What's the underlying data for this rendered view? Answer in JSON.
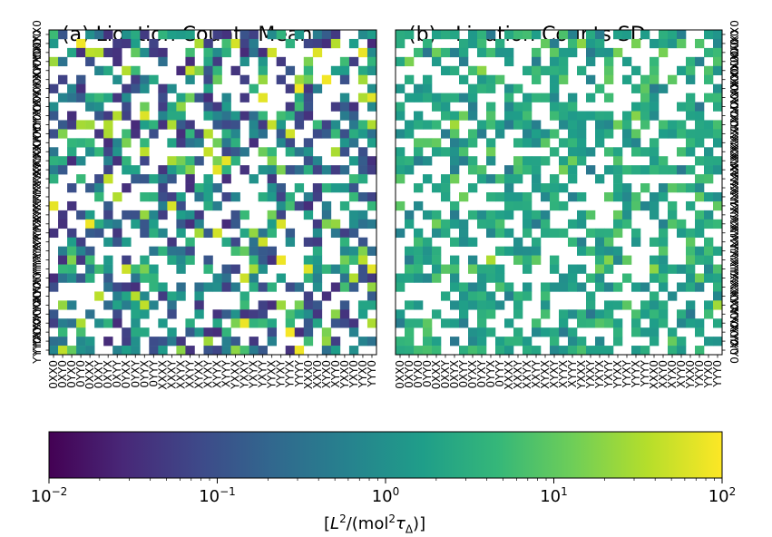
{
  "chart_data": [
    {
      "type": "heatmap",
      "panel_label": "(a)",
      "title": "Ligation Counts Mean",
      "rows": 36,
      "cols": 36,
      "y_tick_labels": [
        "0XX0",
        "0XY0",
        "0YX0",
        "0YY0",
        "0XXX",
        "0XXY",
        "0XYX",
        "0XYY",
        "0YXX",
        "0YXY",
        "0YYX",
        "0YYY",
        "XXXX",
        "XXXY",
        "XXYX",
        "XXYY",
        "XYXX",
        "XYXY",
        "XYYX",
        "XYYY",
        "YXXX",
        "YXXY",
        "YXYX",
        "YXYY",
        "YYXX",
        "YYXY",
        "YYYX",
        "YYYY",
        "XXX0",
        "XXY0",
        "XYX0",
        "XYY0",
        "YXX0",
        "YXY0",
        "YYX0",
        "YYY0"
      ],
      "x_tick_labels": [
        "0XX0",
        "0XY0",
        "0YX0",
        "0YY0",
        "0XXX",
        "0XXY",
        "0XYX",
        "0XYY",
        "0YXX",
        "0YXY",
        "0YYX",
        "0YYY",
        "XXXX",
        "XXXY",
        "XXYX",
        "XXYY",
        "XYXX",
        "XYXY",
        "XYYX",
        "XYYY",
        "YXXX",
        "YXXY",
        "YXYX",
        "YXYY",
        "YYXX",
        "YYXY",
        "YYYX",
        "YYYY",
        "XXX0",
        "XXY0",
        "XYX0",
        "XYY0",
        "YXX0",
        "YXY0",
        "YYX0",
        "YYY0"
      ],
      "color_scale": "log",
      "colormap": "viridis",
      "vmin": 0.01,
      "vmax": 100,
      "missing_color": "#ffffff",
      "seed": 17
    },
    {
      "type": "heatmap",
      "panel_label": "(b)",
      "title": "Ligation Counts SD",
      "rows": 36,
      "cols": 36,
      "y_tick_labels": [
        "0XX0",
        "0XY0",
        "0YX0",
        "0YY0",
        "0XXX",
        "0XXY",
        "0XYX",
        "0XYY",
        "0YXX",
        "0YXY",
        "0YYX",
        "0YYY",
        "XXXX",
        "XXXY",
        "XXYX",
        "XXYY",
        "XYXX",
        "XYXY",
        "XYYX",
        "XYYY",
        "YXXX",
        "YXXY",
        "YXYX",
        "YXYY",
        "YYXX",
        "YYXY",
        "YYYX",
        "YYYY",
        "XXX0",
        "XXY0",
        "XYX0",
        "XYY0",
        "YXX0",
        "YXY0",
        "YYX0",
        "YYY0"
      ],
      "x_tick_labels": [
        "0XX0",
        "0XY0",
        "0YX0",
        "0YY0",
        "0XXX",
        "0XXY",
        "0XYX",
        "0XYY",
        "0YXX",
        "0YXY",
        "0YYX",
        "0YYY",
        "XXXX",
        "XXXY",
        "XXYX",
        "XXYY",
        "XYXX",
        "XYXY",
        "XYYX",
        "XYYY",
        "YXXX",
        "YXXY",
        "YXYX",
        "YXYY",
        "YYXX",
        "YYXY",
        "YYYX",
        "YYYY",
        "XXX0",
        "XXY0",
        "XYX0",
        "XYY0",
        "YXX0",
        "YXY0",
        "YYX0",
        "YYY0"
      ],
      "color_scale": "log",
      "colormap": "viridis",
      "vmin": 0.01,
      "vmax": 100,
      "missing_color": "#ffffff",
      "seed": 17
    }
  ],
  "colorbar": {
    "orientation": "horizontal",
    "scale": "log",
    "min": 0.01,
    "max": 100,
    "tick_values": [
      0.01,
      0.1,
      1,
      10,
      100
    ],
    "tick_labels": [
      {
        "base": "10",
        "exp": "−2"
      },
      {
        "base": "10",
        "exp": "−1"
      },
      {
        "base": "10",
        "exp": "0"
      },
      {
        "base": "10",
        "exp": "1"
      },
      {
        "base": "10",
        "exp": "2"
      }
    ],
    "label": "[L²/(mol²τΔ)]"
  },
  "colors": {
    "viridis_stops": [
      "#440154",
      "#482878",
      "#3e4989",
      "#31688e",
      "#26828e",
      "#1f9e89",
      "#35b779",
      "#6ece58",
      "#b5de2b",
      "#fde725"
    ],
    "frame": "#000000"
  }
}
